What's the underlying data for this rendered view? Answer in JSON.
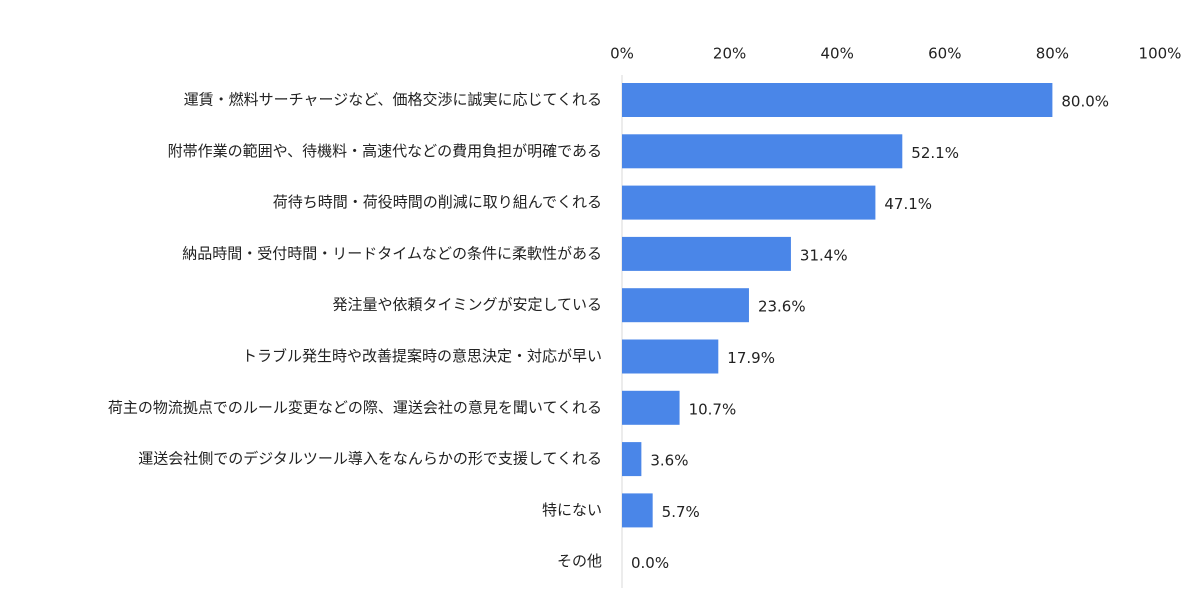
{
  "chart_data": {
    "type": "bar",
    "orientation": "horizontal",
    "categories": [
      "運賃・燃料サーチャージなど、価格交渉に誠実に応じてくれる",
      "附帯作業の範囲や、待機料・高速代などの費用負担が明確である",
      "荷待ち時間・荷役時間の削減に取り組んでくれる",
      "納品時間・受付時間・リードタイムなどの条件に柔軟性がある",
      "発注量や依頼タイミングが安定している",
      "トラブル発生時や改善提案時の意思決定・対応が早い",
      "荷主の物流拠点でのルール変更などの際、運送会社の意見を聞いてくれる",
      "運送会社側でのデジタルツール導入をなんらかの形で支援してくれる",
      "特にない",
      "その他"
    ],
    "values": [
      80.0,
      52.1,
      47.1,
      31.4,
      23.6,
      17.9,
      10.7,
      3.6,
      5.7,
      0.0
    ],
    "value_labels": [
      "80.0%",
      "52.1%",
      "47.1%",
      "31.4%",
      "23.6%",
      "17.9%",
      "10.7%",
      "3.6%",
      "5.7%",
      "0.0%"
    ],
    "xlim": [
      0,
      100
    ],
    "x_ticks": [
      0,
      20,
      40,
      60,
      80,
      100
    ],
    "x_tick_labels": [
      "0%",
      "20%",
      "40%",
      "60%",
      "80%",
      "100%"
    ],
    "x_axis_position": "top",
    "grid": false,
    "legend": "none",
    "bar_color": "#4a86e8",
    "axis_color": "#d9d9d9"
  }
}
